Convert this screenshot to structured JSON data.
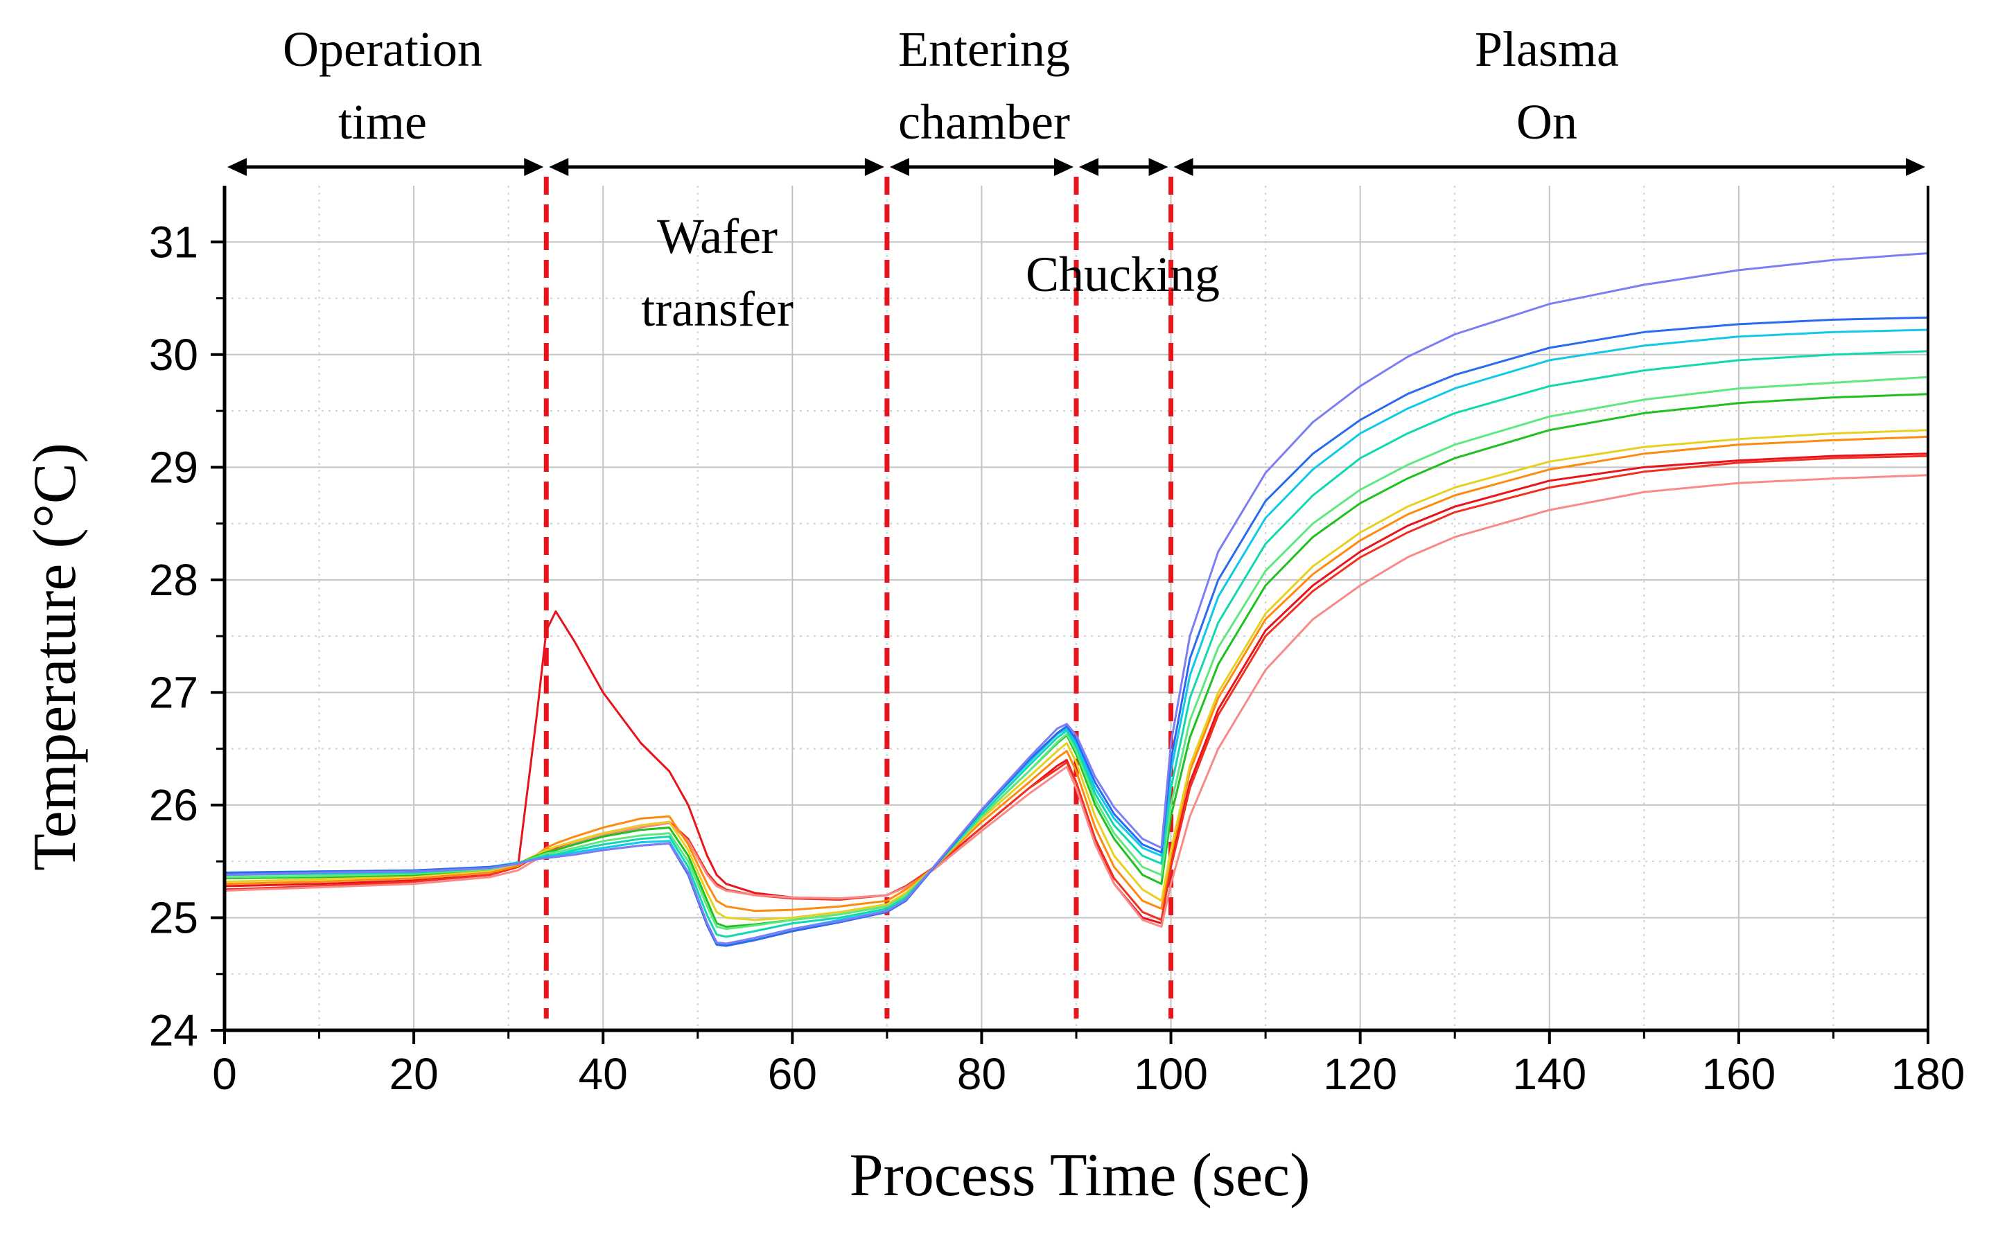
{
  "chart_data": {
    "type": "line",
    "title": "",
    "xlabel": "Process Time (sec)",
    "ylabel": "Temperature (°C)",
    "xlim": [
      0,
      180
    ],
    "ylim": [
      24,
      31.5
    ],
    "grid": true,
    "x_ticks": [
      "0",
      "20",
      "40",
      "60",
      "80",
      "100",
      "120",
      "140",
      "160",
      "180"
    ],
    "y_ticks": [
      "24",
      "25",
      "26",
      "27",
      "28",
      "29",
      "30",
      "31"
    ],
    "x": [
      0,
      10,
      20,
      28,
      31,
      33,
      34,
      35,
      37,
      40,
      44,
      47,
      49,
      51,
      52,
      53,
      56,
      60,
      65,
      70,
      72,
      75,
      80,
      85,
      88,
      89,
      90,
      92,
      94,
      97,
      99,
      100,
      102,
      105,
      110,
      115,
      120,
      125,
      130,
      140,
      150,
      160,
      170,
      180
    ],
    "series": [
      {
        "name": "red-peak",
        "color": "#e8141c",
        "values": [
          25.28,
          25.3,
          25.33,
          25.38,
          25.45,
          26.8,
          27.55,
          27.72,
          27.45,
          27.0,
          26.55,
          26.3,
          26.0,
          25.55,
          25.38,
          25.3,
          25.22,
          25.18,
          25.17,
          25.2,
          25.28,
          25.45,
          25.8,
          26.15,
          26.35,
          26.4,
          26.2,
          25.7,
          25.3,
          25.0,
          24.95,
          25.5,
          26.2,
          26.85,
          27.55,
          27.95,
          28.25,
          28.48,
          28.65,
          28.88,
          29.0,
          29.06,
          29.1,
          29.12
        ]
      },
      {
        "name": "red",
        "color": "#f03020",
        "values": [
          25.25,
          25.28,
          25.32,
          25.38,
          25.45,
          25.55,
          25.6,
          25.62,
          25.68,
          25.75,
          25.82,
          25.85,
          25.7,
          25.4,
          25.3,
          25.25,
          25.2,
          25.17,
          25.16,
          25.2,
          25.28,
          25.45,
          25.8,
          26.15,
          26.32,
          26.38,
          26.2,
          25.7,
          25.35,
          25.05,
          24.98,
          25.45,
          26.15,
          26.8,
          27.5,
          27.9,
          28.2,
          28.42,
          28.6,
          28.82,
          28.96,
          29.04,
          29.08,
          29.1
        ]
      },
      {
        "name": "light-red",
        "color": "#f88a8a",
        "values": [
          25.24,
          25.27,
          25.3,
          25.36,
          25.42,
          25.52,
          25.58,
          25.6,
          25.66,
          25.73,
          25.8,
          25.84,
          25.68,
          25.38,
          25.28,
          25.24,
          25.2,
          25.18,
          25.17,
          25.2,
          25.27,
          25.43,
          25.77,
          26.1,
          26.28,
          26.34,
          26.15,
          25.65,
          25.3,
          24.98,
          24.92,
          25.3,
          25.9,
          26.5,
          27.2,
          27.65,
          27.95,
          28.2,
          28.38,
          28.62,
          28.78,
          28.86,
          28.9,
          28.93
        ]
      },
      {
        "name": "orange",
        "color": "#ff8a10",
        "values": [
          25.3,
          25.32,
          25.35,
          25.4,
          25.46,
          25.56,
          25.62,
          25.66,
          25.72,
          25.8,
          25.88,
          25.9,
          25.65,
          25.3,
          25.15,
          25.1,
          25.06,
          25.07,
          25.1,
          25.15,
          25.25,
          25.45,
          25.85,
          26.2,
          26.42,
          26.48,
          26.3,
          25.8,
          25.45,
          25.15,
          25.08,
          25.55,
          26.3,
          26.95,
          27.65,
          28.05,
          28.35,
          28.58,
          28.75,
          28.98,
          29.12,
          29.2,
          29.24,
          29.27
        ]
      },
      {
        "name": "yellow",
        "color": "#e8d020",
        "values": [
          25.32,
          25.34,
          25.37,
          25.42,
          25.48,
          25.56,
          25.6,
          25.63,
          25.68,
          25.75,
          25.82,
          25.85,
          25.6,
          25.22,
          25.05,
          25.0,
          24.98,
          25.0,
          25.05,
          25.12,
          25.22,
          25.45,
          25.88,
          26.25,
          26.48,
          26.55,
          26.38,
          25.9,
          25.55,
          25.25,
          25.15,
          25.6,
          26.35,
          27.0,
          27.7,
          28.12,
          28.42,
          28.65,
          28.82,
          29.05,
          29.18,
          29.25,
          29.3,
          29.33
        ]
      },
      {
        "name": "green",
        "color": "#20c020",
        "values": [
          25.35,
          25.36,
          25.38,
          25.43,
          25.48,
          25.55,
          25.58,
          25.6,
          25.65,
          25.72,
          25.78,
          25.8,
          25.55,
          25.15,
          24.95,
          24.92,
          24.94,
          24.98,
          25.03,
          25.1,
          25.2,
          25.45,
          25.9,
          26.3,
          26.55,
          26.62,
          26.45,
          26.0,
          25.7,
          25.38,
          25.3,
          25.9,
          26.6,
          27.25,
          27.95,
          28.38,
          28.68,
          28.9,
          29.08,
          29.33,
          29.48,
          29.57,
          29.62,
          29.65
        ]
      },
      {
        "name": "light-green",
        "color": "#60e880",
        "values": [
          25.36,
          25.37,
          25.39,
          25.43,
          25.48,
          25.54,
          25.57,
          25.58,
          25.62,
          25.68,
          25.73,
          25.75,
          25.5,
          25.1,
          24.92,
          24.9,
          24.93,
          24.98,
          25.03,
          25.1,
          25.2,
          25.45,
          25.9,
          26.3,
          26.56,
          26.63,
          26.48,
          26.05,
          25.75,
          25.45,
          25.38,
          26.0,
          26.75,
          27.4,
          28.08,
          28.5,
          28.8,
          29.02,
          29.2,
          29.45,
          29.6,
          29.7,
          29.75,
          29.8
        ]
      },
      {
        "name": "teal",
        "color": "#10d8b0",
        "values": [
          25.38,
          25.39,
          25.4,
          25.44,
          25.48,
          25.53,
          25.55,
          25.56,
          25.6,
          25.65,
          25.7,
          25.72,
          25.45,
          25.02,
          24.85,
          24.83,
          24.88,
          24.95,
          25.0,
          25.08,
          25.18,
          25.45,
          25.92,
          26.35,
          26.6,
          26.66,
          26.52,
          26.1,
          25.82,
          25.55,
          25.48,
          26.15,
          26.95,
          27.62,
          28.32,
          28.75,
          29.08,
          29.3,
          29.48,
          29.72,
          29.86,
          29.95,
          30.0,
          30.03
        ]
      },
      {
        "name": "cyan",
        "color": "#10c8e8",
        "values": [
          25.4,
          25.41,
          25.42,
          25.45,
          25.49,
          25.52,
          25.54,
          25.55,
          25.58,
          25.62,
          25.67,
          25.68,
          25.4,
          24.95,
          24.78,
          24.76,
          24.82,
          24.9,
          24.98,
          25.06,
          25.16,
          25.45,
          25.95,
          26.38,
          26.63,
          26.68,
          26.55,
          26.15,
          25.88,
          25.62,
          25.55,
          26.3,
          27.15,
          27.85,
          28.55,
          28.98,
          29.3,
          29.52,
          29.7,
          29.95,
          30.08,
          30.16,
          30.2,
          30.22
        ]
      },
      {
        "name": "blue",
        "color": "#2a6af0",
        "values": [
          25.4,
          25.41,
          25.42,
          25.45,
          25.48,
          25.52,
          25.53,
          25.54,
          25.56,
          25.6,
          25.64,
          25.66,
          25.38,
          24.93,
          24.76,
          24.75,
          24.8,
          24.88,
          24.96,
          25.05,
          25.15,
          25.45,
          25.95,
          26.4,
          26.64,
          26.7,
          26.58,
          26.2,
          25.92,
          25.65,
          25.58,
          26.4,
          27.3,
          28.0,
          28.7,
          29.12,
          29.42,
          29.65,
          29.82,
          30.06,
          30.2,
          30.27,
          30.31,
          30.33
        ]
      },
      {
        "name": "violet",
        "color": "#7d7df5",
        "values": [
          25.38,
          25.4,
          25.41,
          25.44,
          25.48,
          25.52,
          25.53,
          25.54,
          25.56,
          25.6,
          25.64,
          25.66,
          25.4,
          24.95,
          24.78,
          24.77,
          24.82,
          24.9,
          24.97,
          25.06,
          25.16,
          25.46,
          25.96,
          26.42,
          26.68,
          26.72,
          26.62,
          26.25,
          25.98,
          25.7,
          25.62,
          26.55,
          27.5,
          28.25,
          28.95,
          29.4,
          29.72,
          29.98,
          30.18,
          30.45,
          30.62,
          30.75,
          30.84,
          30.9
        ]
      }
    ],
    "phase_boundaries": [
      34,
      70,
      90,
      100
    ],
    "phase_arrows": [
      [
        0,
        34
      ],
      [
        34,
        70
      ],
      [
        70,
        90
      ],
      [
        90,
        100
      ],
      [
        100,
        180
      ]
    ],
    "annotations": {
      "operation_time": [
        "Operation",
        "time"
      ],
      "wafer_transfer": [
        "Wafer",
        "transfer"
      ],
      "entering_chamber": [
        "Entering",
        "chamber"
      ],
      "chucking": "Chucking",
      "plasma_on": [
        "Plasma",
        "On"
      ]
    }
  }
}
